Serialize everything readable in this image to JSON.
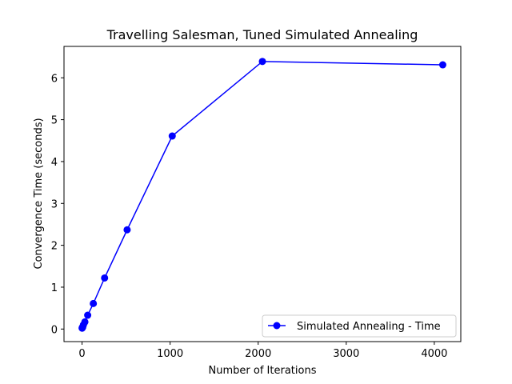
{
  "chart_data": {
    "type": "line",
    "title": "Travelling Salesman, Tuned Simulated Annealing",
    "xlabel": "Number of Iterations",
    "ylabel": "Convergence Time (seconds)",
    "xlim": [
      -205,
      4301
    ],
    "ylim": [
      -0.3,
      6.75
    ],
    "xticks": [
      0,
      1000,
      2000,
      3000,
      4000
    ],
    "yticks": [
      0,
      1,
      2,
      3,
      4,
      5,
      6
    ],
    "grid": false,
    "legend_position": "lower-right",
    "series": [
      {
        "name": "Simulated Annealing - Time",
        "color": "#0000ff",
        "marker": "circle",
        "x": [
          1,
          2,
          4,
          8,
          16,
          32,
          64,
          128,
          256,
          512,
          1024,
          2048,
          4096
        ],
        "y": [
          0.02,
          0.03,
          0.04,
          0.05,
          0.1,
          0.17,
          0.33,
          0.61,
          1.22,
          2.37,
          4.61,
          6.39,
          6.31
        ]
      }
    ]
  }
}
